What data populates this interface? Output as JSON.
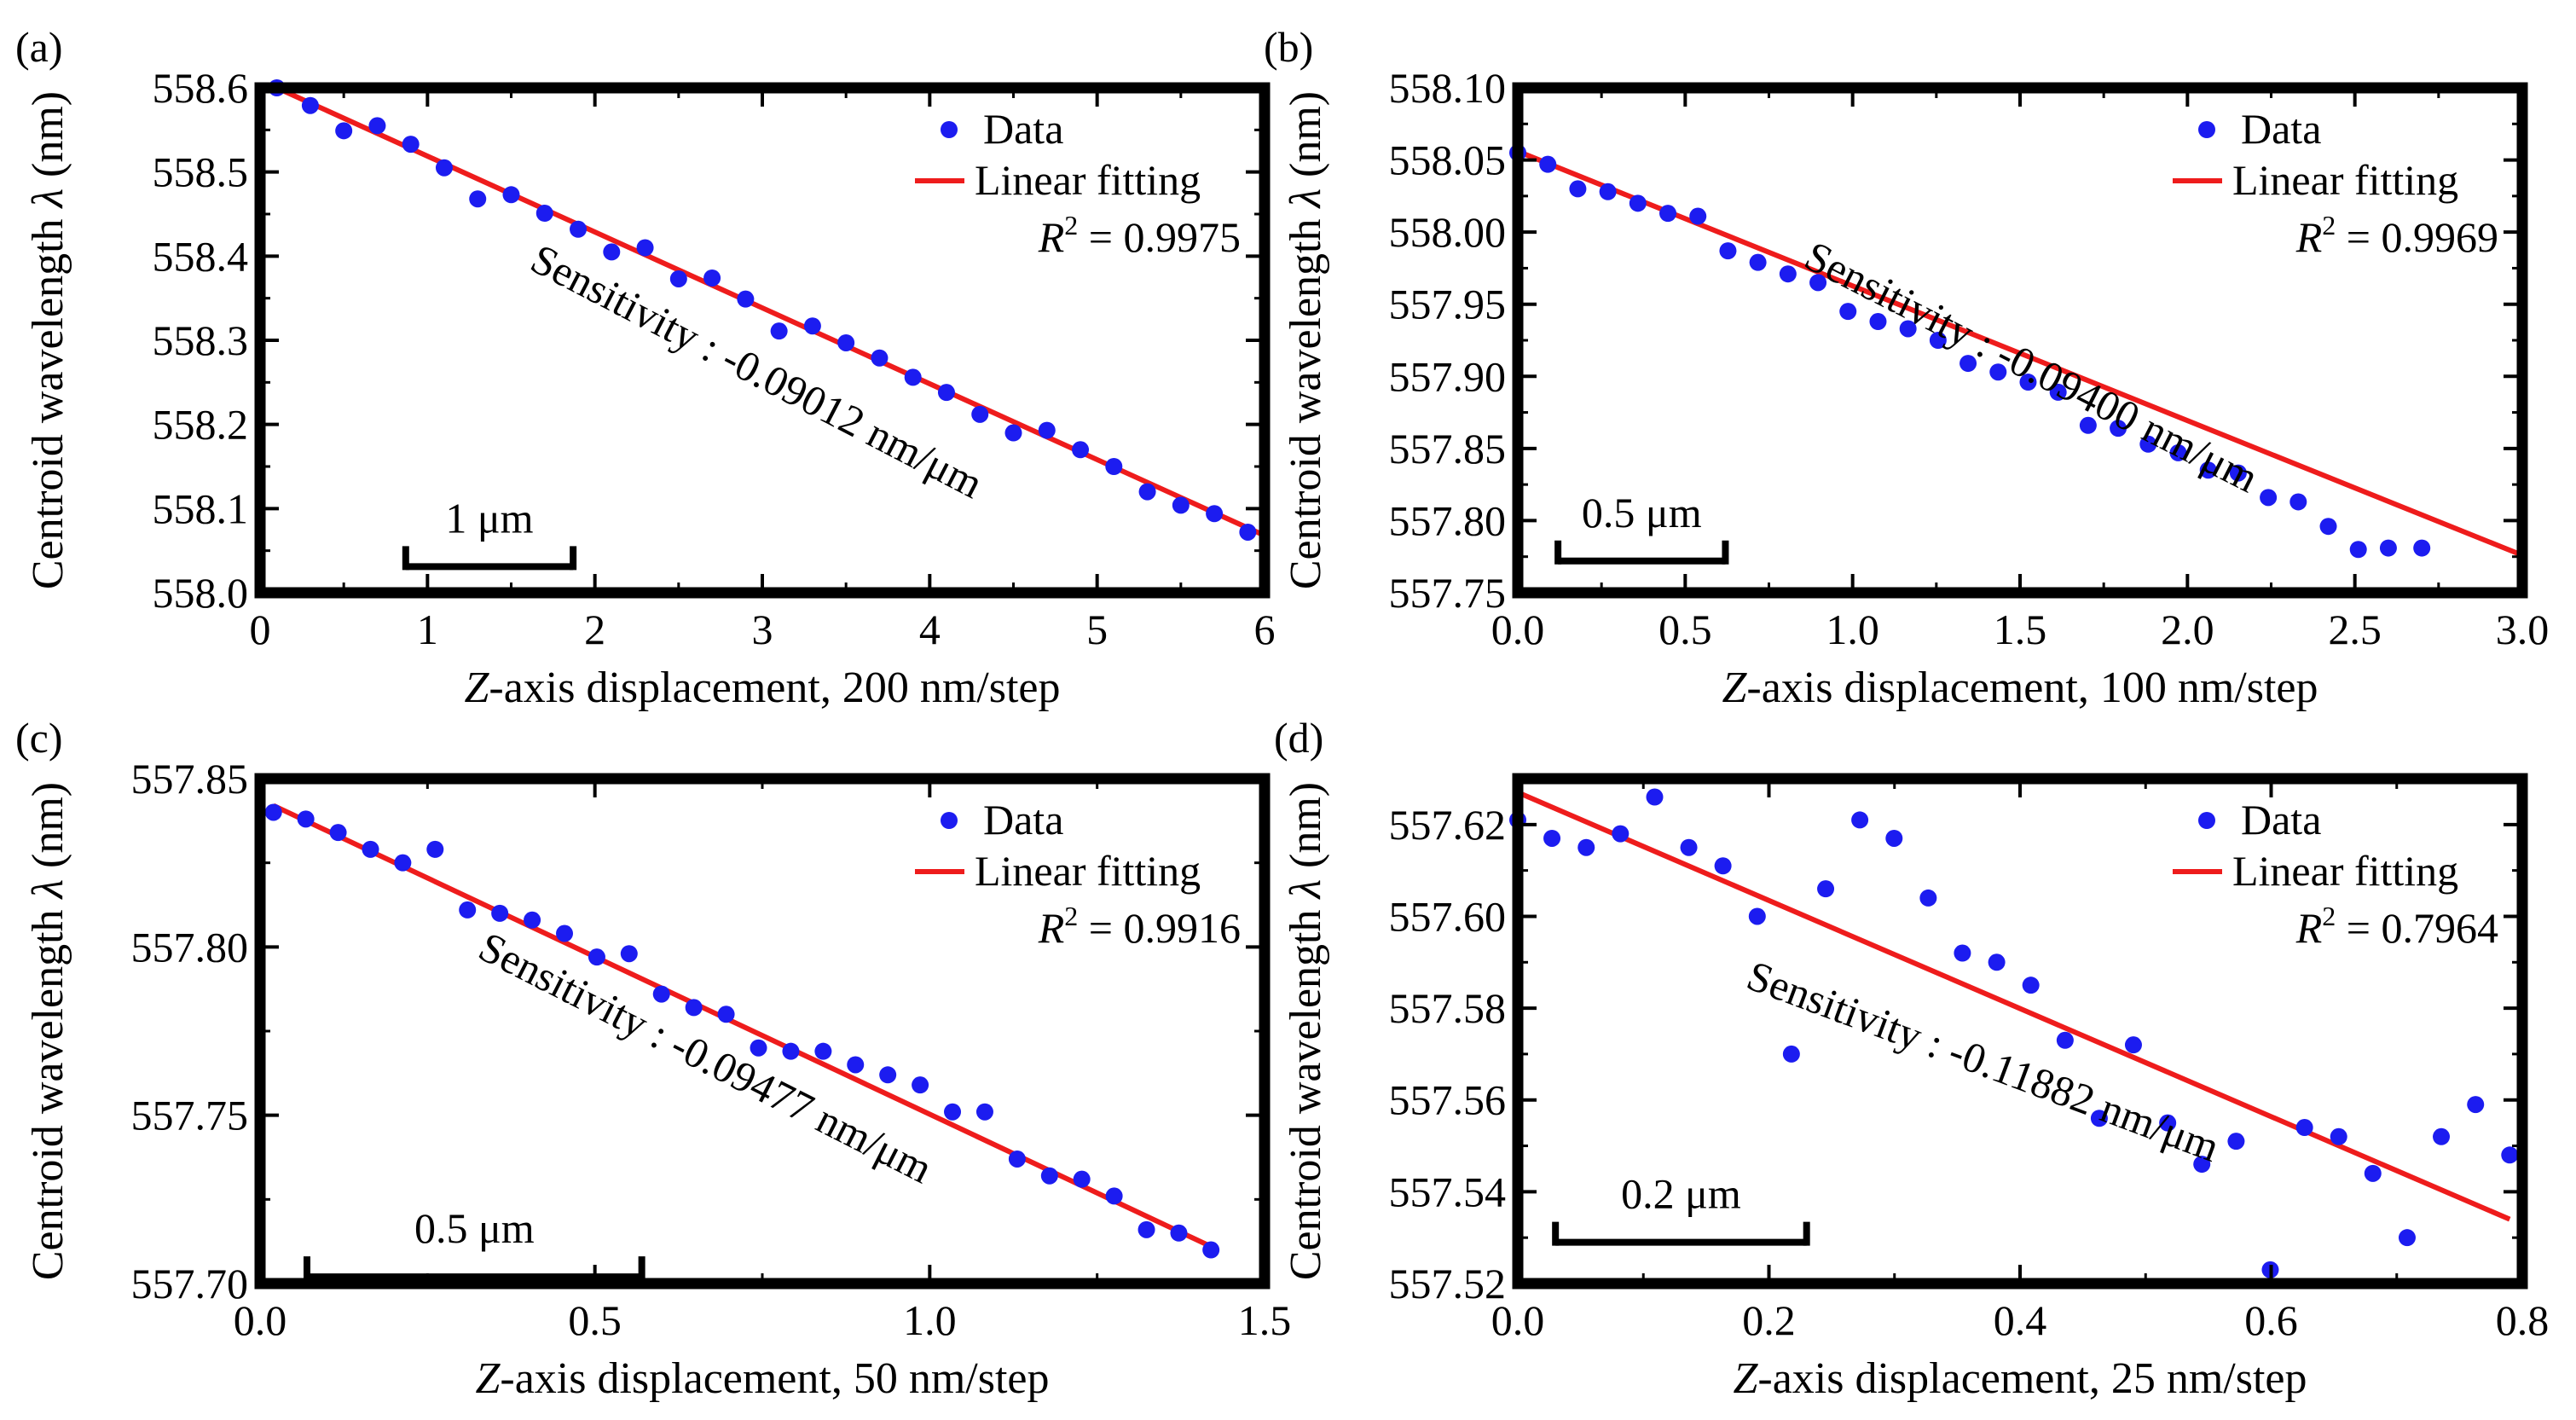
{
  "figure": {
    "colors": {
      "data": "#1c1cf0",
      "fit": "#ee1c1c",
      "frame": "#000000"
    },
    "legend": {
      "data_label": "Data",
      "fit_label": "Linear fitting",
      "r2_prefix": "R",
      "r2_sup": "2",
      "r2_sep": " = "
    },
    "ylabel_parts": [
      "Centroid wavelength ",
      "λ",
      " (nm)"
    ],
    "xlabel_italic": "Z"
  },
  "chart_data": [
    {
      "panel": "(a)",
      "type": "scatter",
      "xlabel_rest": "-axis displacement, 200 nm/step",
      "xlim": [
        0,
        6
      ],
      "ylim": [
        558.0,
        558.6
      ],
      "xticks": [
        0,
        1,
        2,
        3,
        4,
        5,
        6
      ],
      "xtick_labels": [
        "0",
        "1",
        "2",
        "3",
        "4",
        "5",
        "6"
      ],
      "yticks": [
        558.0,
        558.1,
        558.2,
        558.3,
        558.4,
        558.5,
        558.6
      ],
      "ytick_labels": [
        "558.0",
        "558.1",
        "558.2",
        "558.3",
        "558.4",
        "558.5",
        "558.6"
      ],
      "r2": "0.9975",
      "sensitivity": "Sensitivity : -0.09012 nm/μm",
      "scale_bar": {
        "label": "1 μm",
        "x_start": 0.87,
        "x_end": 1.87,
        "y": 558.031
      },
      "fit": {
        "x": [
          0.1,
          6.0
        ],
        "y": [
          558.6,
          558.068
        ]
      },
      "x": [
        0.1,
        0.3,
        0.5,
        0.7,
        0.9,
        1.1,
        1.3,
        1.5,
        1.7,
        1.9,
        2.1,
        2.3,
        2.5,
        2.7,
        2.9,
        3.1,
        3.3,
        3.5,
        3.7,
        3.9,
        4.1,
        4.3,
        4.5,
        4.7,
        4.9,
        5.1,
        5.3,
        5.5,
        5.7,
        5.9
      ],
      "y": [
        558.6,
        558.579,
        558.549,
        558.555,
        558.533,
        558.505,
        558.468,
        558.473,
        558.451,
        558.432,
        558.405,
        558.41,
        558.373,
        558.374,
        558.349,
        558.311,
        558.317,
        558.297,
        558.279,
        558.256,
        558.238,
        558.212,
        558.19,
        558.193,
        558.17,
        558.15,
        558.12,
        558.104,
        558.094,
        558.072
      ]
    },
    {
      "panel": "(b)",
      "type": "scatter",
      "xlabel_rest": "-axis displacement, 100 nm/step",
      "xlim": [
        0,
        3
      ],
      "ylim": [
        557.75,
        558.1
      ],
      "xticks": [
        0,
        0.5,
        1.0,
        1.5,
        2.0,
        2.5,
        3.0
      ],
      "xtick_labels": [
        "0.0",
        "0.5",
        "1.0",
        "1.5",
        "2.0",
        "2.5",
        "3.0"
      ],
      "yticks": [
        557.75,
        557.8,
        557.85,
        557.9,
        557.95,
        558.0,
        558.05,
        558.1
      ],
      "ytick_labels": [
        "557.75",
        "557.80",
        "557.85",
        "557.90",
        "557.95",
        "558.00",
        "558.05",
        "558.10"
      ],
      "r2": "0.9969",
      "sensitivity": "Sensitivity : -0.09400 nm/μm",
      "scale_bar": {
        "label": "0.5 μm",
        "x_start": 0.12,
        "x_end": 0.62,
        "y": 557.772
      },
      "fit": {
        "x": [
          0.0,
          3.0
        ],
        "y": [
          558.056,
          557.776
        ]
      },
      "x": [
        0.0,
        0.0897,
        0.1793,
        0.269,
        0.3586,
        0.4483,
        0.5379,
        0.6276,
        0.7172,
        0.8069,
        0.8966,
        0.9862,
        1.0759,
        1.1655,
        1.2552,
        1.3448,
        1.4345,
        1.5241,
        1.6138,
        1.7034,
        1.7931,
        1.8828,
        1.9724,
        2.0621,
        2.1517,
        2.2414,
        2.331,
        2.4207,
        2.5103,
        2.6,
        2.7
      ],
      "y": [
        558.055,
        558.047,
        558.03,
        558.028,
        558.02,
        558.013,
        558.011,
        557.987,
        557.979,
        557.971,
        557.965,
        557.945,
        557.938,
        557.933,
        557.925,
        557.909,
        557.903,
        557.896,
        557.889,
        557.866,
        557.864,
        557.853,
        557.847,
        557.835,
        557.833,
        557.816,
        557.813,
        557.796,
        557.78,
        557.781,
        557.781
      ]
    },
    {
      "panel": "(c)",
      "type": "scatter",
      "xlabel_rest": "-axis displacement, 50 nm/step",
      "xlim": [
        0,
        1.5
      ],
      "ylim": [
        557.7,
        557.85
      ],
      "xticks": [
        0,
        0.5,
        1.0,
        1.5
      ],
      "xtick_labels": [
        "0.0",
        "0.5",
        "1.0",
        "1.5"
      ],
      "yticks": [
        557.7,
        557.75,
        557.8,
        557.85
      ],
      "ytick_labels": [
        "557.70",
        "557.75",
        "557.80",
        "557.85"
      ],
      "r2": "0.9916",
      "sensitivity": "Sensitivity : -0.09477 nm/μm",
      "scale_bar": {
        "label": "0.5 μm",
        "x_start": 0.07,
        "x_end": 0.57,
        "y": 557.702
      },
      "fit": {
        "x": [
          0.02,
          1.42
        ],
        "y": [
          557.842,
          557.711
        ]
      },
      "x": [
        0.02,
        0.0683,
        0.1166,
        0.1649,
        0.2131,
        0.2614,
        0.3097,
        0.358,
        0.4063,
        0.4546,
        0.5029,
        0.5511,
        0.5994,
        0.6477,
        0.696,
        0.7443,
        0.7926,
        0.8409,
        0.8891,
        0.9374,
        0.9857,
        1.034,
        1.0823,
        1.1306,
        1.1789,
        1.2271,
        1.2754,
        1.3237,
        1.372,
        1.42
      ],
      "y": [
        557.84,
        557.838,
        557.834,
        557.829,
        557.825,
        557.829,
        557.811,
        557.81,
        557.808,
        557.804,
        557.797,
        557.798,
        557.786,
        557.782,
        557.78,
        557.77,
        557.769,
        557.769,
        557.765,
        557.762,
        557.759,
        557.751,
        557.751,
        557.737,
        557.732,
        557.731,
        557.726,
        557.716,
        557.715,
        557.71
      ]
    },
    {
      "panel": "(d)",
      "type": "scatter",
      "xlabel_rest": "-axis displacement, 25 nm/step",
      "xlim": [
        0,
        0.8
      ],
      "ylim": [
        557.52,
        557.63
      ],
      "xticks": [
        0,
        0.2,
        0.4,
        0.6,
        0.8
      ],
      "xtick_labels": [
        "0.0",
        "0.2",
        "0.4",
        "0.6",
        "0.8"
      ],
      "yticks": [
        557.52,
        557.54,
        557.56,
        557.58,
        557.6,
        557.62
      ],
      "ytick_labels": [
        "557.52",
        "557.54",
        "557.56",
        "557.58",
        "557.60",
        "557.62"
      ],
      "r2": "0.7964",
      "sensitivity": "Sensitivity : -0.11882 nm/μm",
      "scale_bar": {
        "label": "0.2 μm",
        "x_start": 0.03,
        "x_end": 0.23,
        "y": 557.529
      },
      "fit": {
        "x": [
          0.0,
          0.79
        ],
        "y": [
          557.627,
          557.534
        ]
      },
      "x": [
        0.0,
        0.0272,
        0.0545,
        0.0817,
        0.109,
        0.1362,
        0.1634,
        0.1907,
        0.2179,
        0.2452,
        0.2724,
        0.2997,
        0.3269,
        0.3541,
        0.3814,
        0.4086,
        0.4359,
        0.4631,
        0.4903,
        0.5176,
        0.5448,
        0.5721,
        0.5993,
        0.6266,
        0.6538,
        0.681,
        0.7083,
        0.7355,
        0.7628,
        0.79
      ],
      "y": [
        557.621,
        557.617,
        557.615,
        557.618,
        557.626,
        557.615,
        557.611,
        557.6,
        557.57,
        557.606,
        557.621,
        557.617,
        557.604,
        557.592,
        557.59,
        557.585,
        557.573,
        557.556,
        557.572,
        557.555,
        557.546,
        557.551,
        557.523,
        557.554,
        557.552,
        557.544,
        557.53,
        557.552,
        557.559,
        557.548
      ]
    }
  ]
}
